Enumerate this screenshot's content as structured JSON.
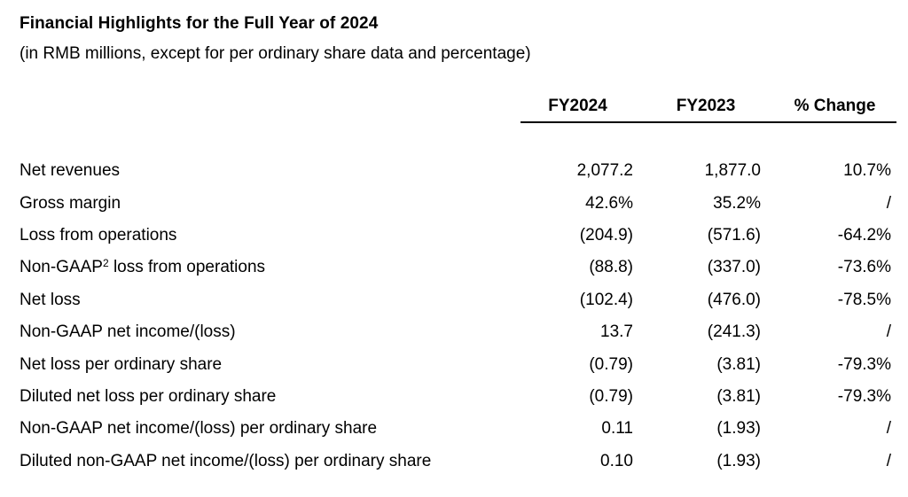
{
  "title": "Financial Highlights for the Full Year of 2024",
  "subtitle": "(in RMB millions, except for per ordinary share data and percentage)",
  "colors": {
    "background": "#ffffff",
    "text": "#000000",
    "rule": "#000000"
  },
  "table": {
    "columns": [
      "FY2024",
      "FY2023",
      "% Change"
    ],
    "rows": [
      {
        "label": "Net revenues",
        "fy2024": "2,077.2",
        "fy2023": "1,877.0",
        "change": "10.7%"
      },
      {
        "label": "Gross margin",
        "fy2024": "42.6%",
        "fy2023": "35.2%",
        "change": "/"
      },
      {
        "label": "Loss from operations",
        "fy2024": "(204.9)",
        "fy2023": "(571.6)",
        "change": "-64.2%"
      },
      {
        "label": "Non-GAAP² loss from operations",
        "fy2024": "(88.8)",
        "fy2023": "(337.0)",
        "change": "-73.6%"
      },
      {
        "label": "Net loss",
        "fy2024": "(102.4)",
        "fy2023": "(476.0)",
        "change": "-78.5%"
      },
      {
        "label": "Non-GAAP net income/(loss)",
        "fy2024": "13.7",
        "fy2023": "(241.3)",
        "change": "/"
      },
      {
        "label": "Net loss per ordinary share",
        "fy2024": "(0.79)",
        "fy2023": "(3.81)",
        "change": "-79.3%"
      },
      {
        "label": "Diluted net loss per ordinary share",
        "fy2024": "(0.79)",
        "fy2023": "(3.81)",
        "change": "-79.3%"
      },
      {
        "label": "Non-GAAP net income/(loss) per ordinary share",
        "fy2024": "0.11",
        "fy2023": "(1.93)",
        "change": "/"
      },
      {
        "label": "Diluted non-GAAP net income/(loss) per ordinary share",
        "fy2024": "0.10",
        "fy2023": "(1.93)",
        "change": "/"
      }
    ]
  }
}
